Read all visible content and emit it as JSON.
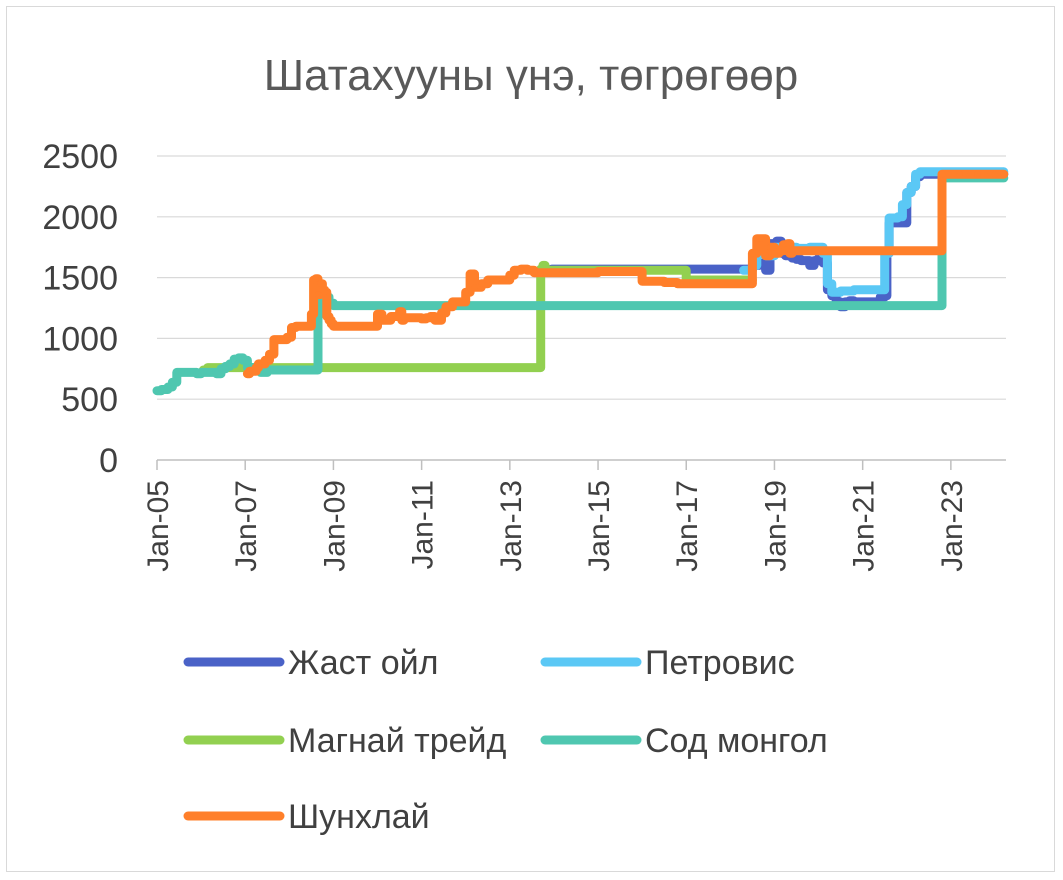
{
  "chart_data": {
    "type": "line",
    "title": "Шатахууны үнэ, төгрөгөөр",
    "xlabel": "",
    "ylabel": "",
    "ylim": [
      0,
      2500
    ],
    "yticks": [
      0,
      500,
      1000,
      1500,
      2000,
      2500
    ],
    "xlim": [
      2005.0,
      2024.25
    ],
    "xticks": [
      {
        "label": "Jan-05",
        "value": 2005
      },
      {
        "label": "Jan-07",
        "value": 2007
      },
      {
        "label": "Jan-09",
        "value": 2009
      },
      {
        "label": "Jan-11",
        "value": 2011
      },
      {
        "label": "Jan-13",
        "value": 2013
      },
      {
        "label": "Jan-15",
        "value": 2015
      },
      {
        "label": "Jan-17",
        "value": 2017
      },
      {
        "label": "Jan-19",
        "value": 2019
      },
      {
        "label": "Jan-21",
        "value": 2021
      },
      {
        "label": "Jan-23",
        "value": 2023
      }
    ],
    "grid": true,
    "legend": "bottom",
    "series": [
      {
        "name": "Жаст ойл",
        "color": "#4A62C7",
        "x": [
          2013.95,
          2014.3,
          2018.5,
          2018.65,
          2018.7,
          2018.75,
          2018.8,
          2018.9,
          2019.05,
          2019.15,
          2019.25,
          2019.4,
          2019.5,
          2019.6,
          2019.8,
          2019.9,
          2020.0,
          2020.1,
          2020.2,
          2020.3,
          2020.4,
          2020.5,
          2020.6,
          2020.7,
          2020.8,
          2021.0,
          2021.2,
          2021.3,
          2021.4,
          2021.5,
          2021.55,
          2021.6,
          2021.7,
          2021.9,
          2022.0,
          2022.1,
          2022.2,
          2022.3,
          2022.5,
          2023.0,
          2023.5,
          2024.0,
          2024.2
        ],
        "y": [
          1570,
          1570,
          1600,
          1650,
          1700,
          1620,
          1560,
          1780,
          1800,
          1700,
          1680,
          1660,
          1650,
          1640,
          1600,
          1640,
          1660,
          1620,
          1400,
          1350,
          1300,
          1260,
          1300,
          1310,
          1300,
          1300,
          1300,
          1300,
          1340,
          1350,
          1700,
          1950,
          1950,
          1950,
          2200,
          2250,
          2330,
          2350,
          2350,
          2350,
          2350,
          2350,
          2350
        ]
      },
      {
        "name": "Петровис",
        "color": "#5BC8F5",
        "x": [
          2018.3,
          2018.5,
          2018.6,
          2018.8,
          2019.0,
          2019.2,
          2019.5,
          2019.8,
          2020.0,
          2020.1,
          2020.2,
          2020.3,
          2020.4,
          2020.5,
          2020.8,
          2021.0,
          2021.3,
          2021.4,
          2021.5,
          2021.6,
          2021.8,
          2021.9,
          2022.0,
          2022.1,
          2022.2,
          2022.3,
          2022.6,
          2023.0,
          2023.5,
          2024.2
        ],
        "y": [
          1560,
          1600,
          1690,
          1680,
          1750,
          1750,
          1740,
          1750,
          1750,
          1700,
          1450,
          1380,
          1380,
          1390,
          1400,
          1400,
          1400,
          1400,
          1700,
          1990,
          2000,
          2100,
          2200,
          2250,
          2350,
          2370,
          2370,
          2370,
          2370,
          2370
        ]
      },
      {
        "name": "Магнай трейд",
        "color": "#92D050",
        "x": [
          2006.05,
          2006.15,
          2013.7,
          2013.75,
          2013.8,
          2017.0,
          2017.3,
          2017.6,
          2017.9,
          2018.3,
          2018.5
        ],
        "y": [
          740,
          760,
          1570,
          1600,
          1560,
          1480,
          1480,
          1480,
          1480,
          1480,
          1480
        ]
      },
      {
        "name": "Сод монгол",
        "color": "#4FC7B0",
        "x": [
          2005.0,
          2005.1,
          2005.2,
          2005.25,
          2005.35,
          2005.45,
          2005.55,
          2005.7,
          2005.9,
          2006.0,
          2006.2,
          2006.35,
          2006.45,
          2006.55,
          2006.65,
          2006.75,
          2006.85,
          2006.95,
          2007.05,
          2007.2,
          2007.35,
          2007.5,
          2008.65,
          2008.8,
          2008.9,
          2009.0,
          2022.8,
          2023.2,
          2023.6,
          2024.0,
          2024.2
        ],
        "y": [
          570,
          580,
          580,
          600,
          640,
          720,
          720,
          720,
          710,
          720,
          720,
          710,
          750,
          770,
          790,
          830,
          840,
          820,
          760,
          740,
          720,
          740,
          1380,
          1340,
          1290,
          1270,
          2320,
          2320,
          2320,
          2320,
          2320
        ]
      },
      {
        "name": "Шунхлай",
        "color": "#FF7F2A",
        "x": [
          2007.05,
          2007.1,
          2007.25,
          2007.3,
          2007.45,
          2007.55,
          2007.65,
          2007.75,
          2007.85,
          2007.95,
          2008.05,
          2008.15,
          2008.3,
          2008.4,
          2008.5,
          2008.55,
          2008.6,
          2008.65,
          2008.7,
          2008.75,
          2008.8,
          2008.85,
          2008.9,
          2008.95,
          2009.0,
          2009.1,
          2009.3,
          2009.6,
          2009.9,
          2010.0,
          2010.1,
          2010.3,
          2010.5,
          2010.55,
          2010.6,
          2010.8,
          2011.0,
          2011.1,
          2011.2,
          2011.3,
          2011.45,
          2011.55,
          2011.7,
          2011.85,
          2011.95,
          2012.0,
          2012.1,
          2012.2,
          2012.35,
          2012.5,
          2012.7,
          2012.9,
          2013.0,
          2013.1,
          2013.25,
          2013.4,
          2013.55,
          2013.7,
          2013.9,
          2014.2,
          2014.6,
          2015.0,
          2015.5,
          2015.9,
          2016.0,
          2016.2,
          2016.5,
          2016.8,
          2017.0,
          2018.5,
          2018.6,
          2018.7,
          2018.8,
          2018.9,
          2019.0,
          2019.1,
          2019.2,
          2019.3,
          2019.35,
          2019.4,
          2022.8,
          2023.2,
          2023.6,
          2024.0,
          2024.2
        ],
        "y": [
          710,
          730,
          760,
          790,
          820,
          870,
          990,
          990,
          990,
          1010,
          1090,
          1100,
          1100,
          1100,
          1200,
          1480,
          1490,
          1360,
          1450,
          1400,
          1380,
          1180,
          1150,
          1120,
          1100,
          1100,
          1100,
          1100,
          1100,
          1200,
          1150,
          1180,
          1220,
          1150,
          1170,
          1170,
          1160,
          1170,
          1180,
          1150,
          1210,
          1260,
          1300,
          1300,
          1300,
          1380,
          1530,
          1420,
          1450,
          1480,
          1480,
          1480,
          1520,
          1560,
          1570,
          1560,
          1540,
          1540,
          1540,
          1540,
          1540,
          1550,
          1550,
          1550,
          1470,
          1470,
          1460,
          1450,
          1450,
          1700,
          1820,
          1820,
          1680,
          1750,
          1700,
          1720,
          1770,
          1780,
          1700,
          1720,
          2350,
          2350,
          2350,
          2350,
          2350
        ]
      }
    ]
  }
}
